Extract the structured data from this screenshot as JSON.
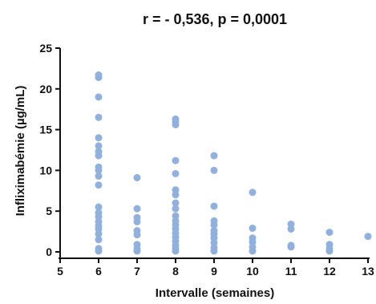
{
  "chart_data": {
    "type": "scatter",
    "title": "r = - 0,536,   p = 0,0001",
    "xlabel": "Intervalle (semaines)",
    "ylabel": "Infliximabémie (µg/mL)",
    "xlim": [
      5,
      13
    ],
    "ylim": [
      0,
      25
    ],
    "x_ticks": [
      "5",
      "6",
      "7",
      "8",
      "9",
      "10",
      "11",
      "12",
      "13"
    ],
    "y_ticks": [
      "0",
      "5",
      "10",
      "15",
      "20",
      "25"
    ],
    "grid": false,
    "legend": "none",
    "point_color": "#8fb1df",
    "series": [
      {
        "points": [
          [
            6,
            0.1
          ],
          [
            6,
            0.4
          ],
          [
            6,
            1.5
          ],
          [
            6,
            2.2
          ],
          [
            6,
            2.8
          ],
          [
            6,
            3.2
          ],
          [
            6,
            3.7
          ],
          [
            6,
            4.3
          ],
          [
            6,
            4.8
          ],
          [
            6,
            5.5
          ],
          [
            6,
            8.2
          ],
          [
            6,
            9.3
          ],
          [
            6,
            10.0
          ],
          [
            6,
            10.4
          ],
          [
            6,
            11.8
          ],
          [
            6,
            12.3
          ],
          [
            6,
            13.0
          ],
          [
            6,
            14.0
          ],
          [
            6,
            16.5
          ],
          [
            6,
            19.0
          ],
          [
            6,
            21.4
          ],
          [
            6,
            21.7
          ],
          [
            7,
            0.1
          ],
          [
            7,
            0.4
          ],
          [
            7,
            0.9
          ],
          [
            7,
            2.1
          ],
          [
            7,
            2.6
          ],
          [
            7,
            3.7
          ],
          [
            7,
            4.2
          ],
          [
            7,
            5.3
          ],
          [
            7,
            9.1
          ],
          [
            8,
            0.1
          ],
          [
            8,
            0.4
          ],
          [
            8,
            0.8
          ],
          [
            8,
            1.3
          ],
          [
            8,
            1.8
          ],
          [
            8,
            2.3
          ],
          [
            8,
            2.8
          ],
          [
            8,
            3.3
          ],
          [
            8,
            3.8
          ],
          [
            8,
            4.4
          ],
          [
            8,
            5.3
          ],
          [
            8,
            6.0
          ],
          [
            8,
            7.0
          ],
          [
            8,
            7.6
          ],
          [
            8,
            9.6
          ],
          [
            8,
            11.2
          ],
          [
            8,
            15.6
          ],
          [
            8,
            16.0
          ],
          [
            8,
            16.3
          ],
          [
            9,
            0.1
          ],
          [
            9,
            0.5
          ],
          [
            9,
            1.1
          ],
          [
            9,
            1.7
          ],
          [
            9,
            2.2
          ],
          [
            9,
            2.6
          ],
          [
            9,
            3.3
          ],
          [
            9,
            3.8
          ],
          [
            9,
            5.6
          ],
          [
            9,
            10.0
          ],
          [
            9,
            11.8
          ],
          [
            10,
            0.1
          ],
          [
            10,
            0.6
          ],
          [
            10,
            1.2
          ],
          [
            10,
            1.7
          ],
          [
            10,
            2.9
          ],
          [
            10,
            7.3
          ],
          [
            11,
            0.6
          ],
          [
            11,
            0.8
          ],
          [
            11,
            2.8
          ],
          [
            11,
            3.4
          ],
          [
            12,
            0.1
          ],
          [
            12,
            0.4
          ],
          [
            12,
            0.9
          ],
          [
            12,
            2.4
          ],
          [
            13,
            1.9
          ]
        ]
      }
    ]
  }
}
